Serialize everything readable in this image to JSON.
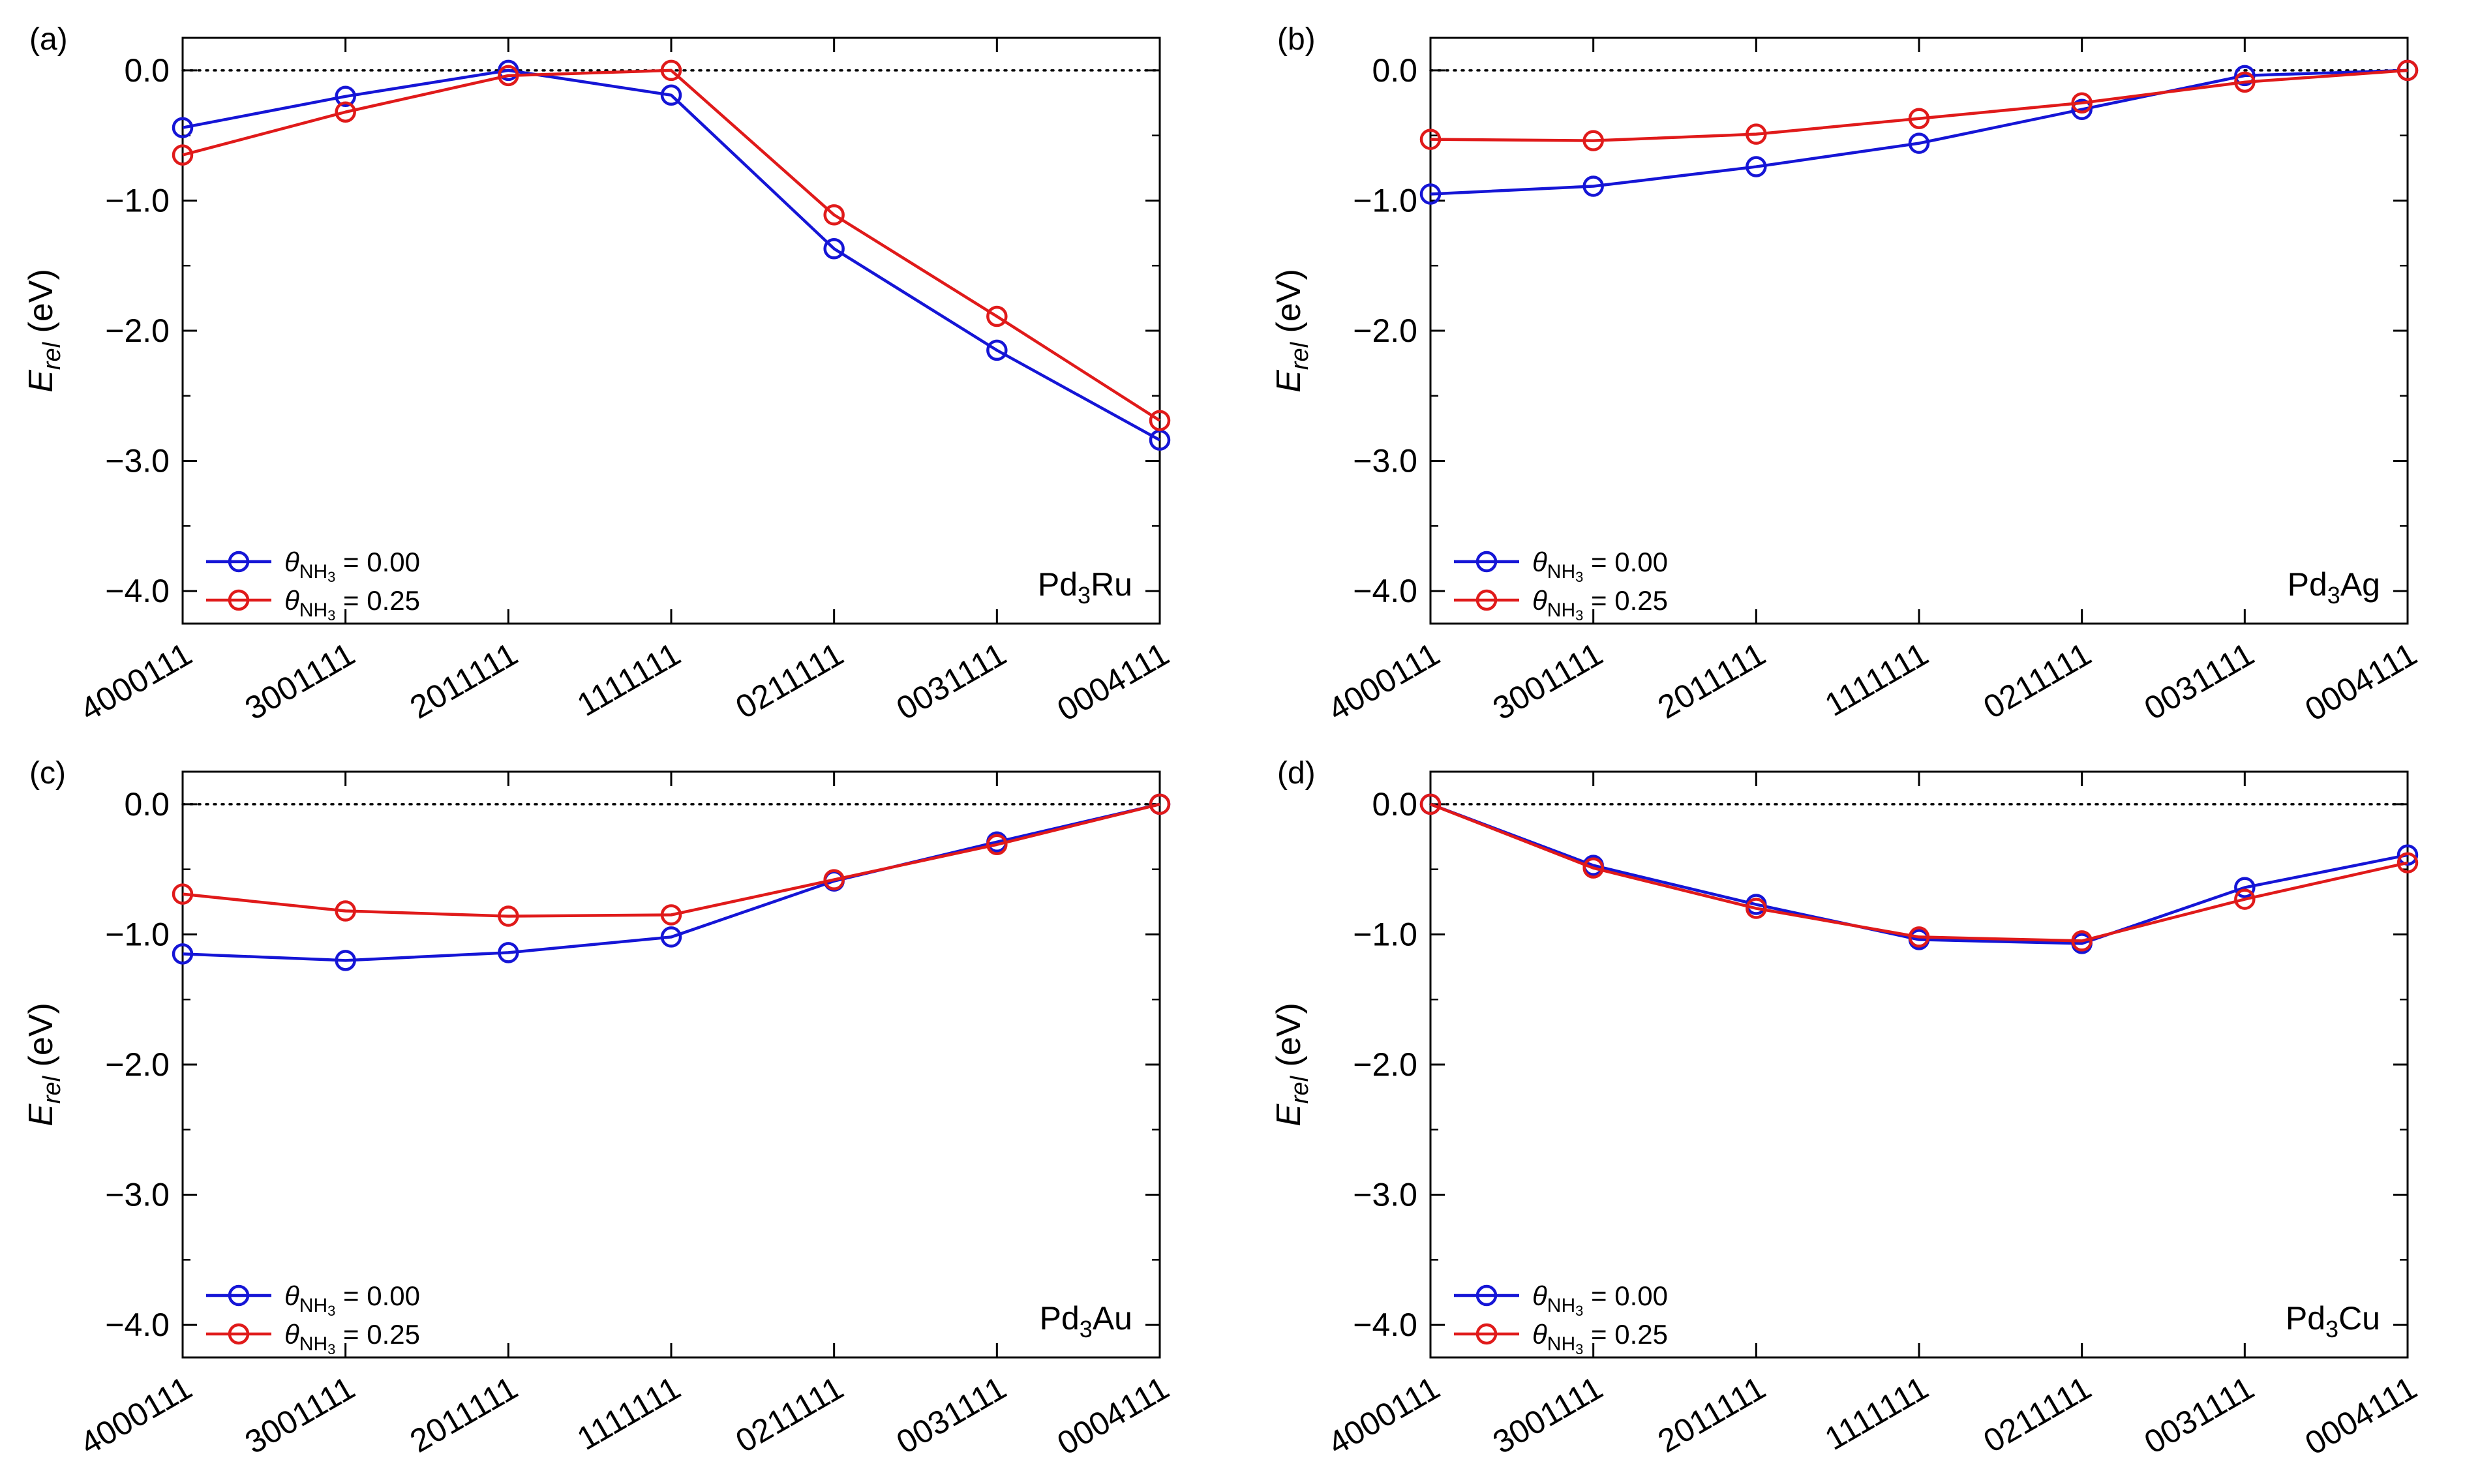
{
  "chart_data": [
    {
      "type": "line",
      "panel": "(a)",
      "material": {
        "base": "Pd",
        "sub": "3",
        "tail": "Ru"
      },
      "categories": [
        "4000111",
        "3001111",
        "2011111",
        "1111111",
        "0211111",
        "0031111",
        "0004111"
      ],
      "ylabel": {
        "main": "E",
        "sub": "rel",
        "unit": " (eV)"
      },
      "ylim": [
        -4.25,
        0.25
      ],
      "yticks": [
        0.0,
        -1.0,
        -2.0,
        -3.0,
        -4.0
      ],
      "ytick_labels": [
        "0.0",
        "−1.0",
        "−2.0",
        "−3.0",
        "−4.0"
      ],
      "reference_line": 0.0,
      "legend_position": "bottom-left",
      "series": [
        {
          "name": "θ_NH3 = 0.00",
          "legend_symbol": "θ",
          "legend_sub": "NH",
          "legend_subsub": "3",
          "legend_value": " = 0.00",
          "color": "#1515d6",
          "values": [
            -0.44,
            -0.2,
            0.0,
            -0.19,
            -1.37,
            -2.15,
            -2.84
          ]
        },
        {
          "name": "θ_NH3 = 0.25",
          "legend_symbol": "θ",
          "legend_sub": "NH",
          "legend_subsub": "3",
          "legend_value": " = 0.25",
          "color": "#e01a1a",
          "values": [
            -0.65,
            -0.32,
            -0.04,
            0.0,
            -1.11,
            -1.89,
            -2.69
          ]
        }
      ]
    },
    {
      "type": "line",
      "panel": "(b)",
      "material": {
        "base": "Pd",
        "sub": "3",
        "tail": "Ag"
      },
      "categories": [
        "4000111",
        "3001111",
        "2011111",
        "1111111",
        "0211111",
        "0031111",
        "0004111"
      ],
      "ylabel": {
        "main": "E",
        "sub": "rel",
        "unit": " (eV)"
      },
      "ylim": [
        -4.25,
        0.25
      ],
      "yticks": [
        0.0,
        -1.0,
        -2.0,
        -3.0,
        -4.0
      ],
      "ytick_labels": [
        "0.0",
        "−1.0",
        "−2.0",
        "−3.0",
        "−4.0"
      ],
      "reference_line": 0.0,
      "legend_position": "bottom-left",
      "series": [
        {
          "name": "θ_NH3 = 0.00",
          "legend_symbol": "θ",
          "legend_sub": "NH",
          "legend_subsub": "3",
          "legend_value": " = 0.00",
          "color": "#1515d6",
          "values": [
            -0.95,
            -0.89,
            -0.74,
            -0.56,
            -0.3,
            -0.04,
            0.0
          ]
        },
        {
          "name": "θ_NH3 = 0.25",
          "legend_symbol": "θ",
          "legend_sub": "NH",
          "legend_subsub": "3",
          "legend_value": " = 0.25",
          "color": "#e01a1a",
          "values": [
            -0.53,
            -0.54,
            -0.49,
            -0.37,
            -0.25,
            -0.09,
            0.0
          ]
        }
      ]
    },
    {
      "type": "line",
      "panel": "(c)",
      "material": {
        "base": "Pd",
        "sub": "3",
        "tail": "Au"
      },
      "categories": [
        "4000111",
        "3001111",
        "2011111",
        "1111111",
        "0211111",
        "0031111",
        "0004111"
      ],
      "ylabel": {
        "main": "E",
        "sub": "rel",
        "unit": " (eV)"
      },
      "ylim": [
        -4.25,
        0.25
      ],
      "yticks": [
        0.0,
        -1.0,
        -2.0,
        -3.0,
        -4.0
      ],
      "ytick_labels": [
        "0.0",
        "−1.0",
        "−2.0",
        "−3.0",
        "−4.0"
      ],
      "reference_line": 0.0,
      "legend_position": "bottom-left",
      "series": [
        {
          "name": "θ_NH3 = 0.00",
          "legend_symbol": "θ",
          "legend_sub": "NH",
          "legend_subsub": "3",
          "legend_value": " = 0.00",
          "color": "#1515d6",
          "values": [
            -1.15,
            -1.2,
            -1.14,
            -1.02,
            -0.59,
            -0.29,
            0.0
          ]
        },
        {
          "name": "θ_NH3 = 0.25",
          "legend_symbol": "θ",
          "legend_sub": "NH",
          "legend_subsub": "3",
          "legend_value": " = 0.25",
          "color": "#e01a1a",
          "values": [
            -0.69,
            -0.82,
            -0.86,
            -0.85,
            -0.58,
            -0.31,
            0.0
          ]
        }
      ]
    },
    {
      "type": "line",
      "panel": "(d)",
      "material": {
        "base": "Pd",
        "sub": "3",
        "tail": "Cu"
      },
      "categories": [
        "4000111",
        "3001111",
        "2011111",
        "1111111",
        "0211111",
        "0031111",
        "0004111"
      ],
      "ylabel": {
        "main": "E",
        "sub": "rel",
        "unit": " (eV)"
      },
      "ylim": [
        -4.25,
        0.25
      ],
      "yticks": [
        0.0,
        -1.0,
        -2.0,
        -3.0,
        -4.0
      ],
      "ytick_labels": [
        "0.0",
        "−1.0",
        "−2.0",
        "−3.0",
        "−4.0"
      ],
      "reference_line": 0.0,
      "legend_position": "bottom-left",
      "series": [
        {
          "name": "θ_NH3 = 0.00",
          "legend_symbol": "θ",
          "legend_sub": "NH",
          "legend_subsub": "3",
          "legend_value": " = 0.00",
          "color": "#1515d6",
          "values": [
            0.0,
            -0.47,
            -0.77,
            -1.04,
            -1.07,
            -0.64,
            -0.39
          ]
        },
        {
          "name": "θ_NH3 = 0.25",
          "legend_symbol": "θ",
          "legend_sub": "NH",
          "legend_subsub": "3",
          "legend_value": " = 0.25",
          "color": "#e01a1a",
          "values": [
            0.0,
            -0.49,
            -0.8,
            -1.02,
            -1.05,
            -0.73,
            -0.45
          ]
        }
      ]
    }
  ]
}
